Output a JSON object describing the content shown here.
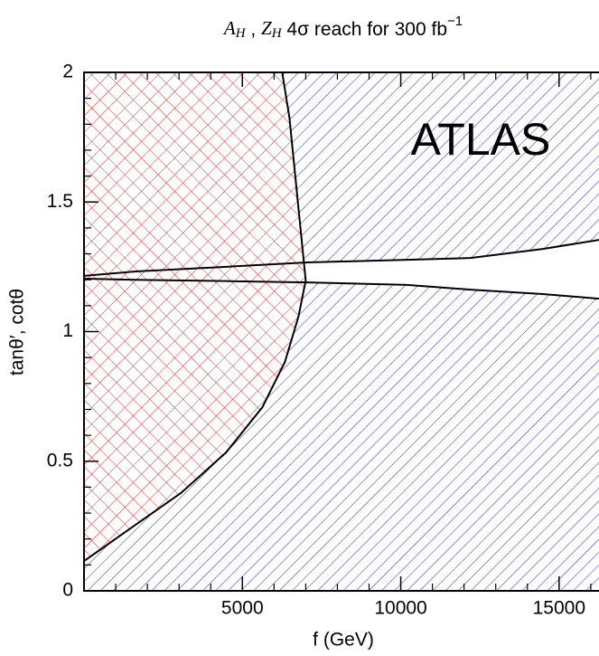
{
  "chart_data": {
    "type": "region",
    "title": [
      "A",
      "H",
      " , ",
      "Z",
      "H",
      " 4σ reach for 300 fb",
      "−1"
    ],
    "x_label": "f (GeV)",
    "y_label": "tanθ′, cotθ",
    "annotation": "ATLAS",
    "xlim": [
      0,
      16260
    ],
    "ylim": [
      0,
      2
    ],
    "xticks": [
      5000,
      10000,
      15000
    ],
    "yticks": [
      0,
      0.5,
      1,
      1.5,
      2
    ],
    "xminor_ticks": [
      1000,
      2000,
      3000,
      4000,
      6000,
      7000,
      8000,
      9000,
      11000,
      12000,
      13000,
      14000,
      16000
    ],
    "yminor_ticks": [
      0.1,
      0.2,
      0.3,
      0.4,
      0.6,
      0.7,
      0.8,
      0.9,
      1.1,
      1.2,
      1.3,
      1.4,
      1.6,
      1.7,
      1.8,
      1.9
    ],
    "series": [
      {
        "color": "#d02020",
        "x": [
          0,
          1629,
          3057,
          4486,
          5629,
          6343,
          6771,
          7000,
          6914,
          6771,
          6629,
          6486,
          6257
        ],
        "values": [
          0.115,
          0.255,
          0.377,
          0.534,
          0.708,
          0.883,
          1.058,
          1.197,
          1.302,
          1.476,
          1.651,
          1.825,
          2.0
        ]
      },
      {
        "color": "#2020c0",
        "x": [
          0,
          1629,
          4486,
          7057,
          10200,
          12200,
          14486,
          16260
        ],
        "values": [
          1.215,
          1.232,
          1.25,
          1.267,
          1.277,
          1.284,
          1.319,
          1.354
        ]
      },
      {
        "color": "#2020c0",
        "x": [
          0,
          1629,
          4486,
          7057,
          10200,
          12200,
          14486,
          16260
        ],
        "values": [
          1.204,
          1.2,
          1.195,
          1.19,
          1.18,
          1.162,
          1.145,
          1.127
        ]
      }
    ]
  }
}
